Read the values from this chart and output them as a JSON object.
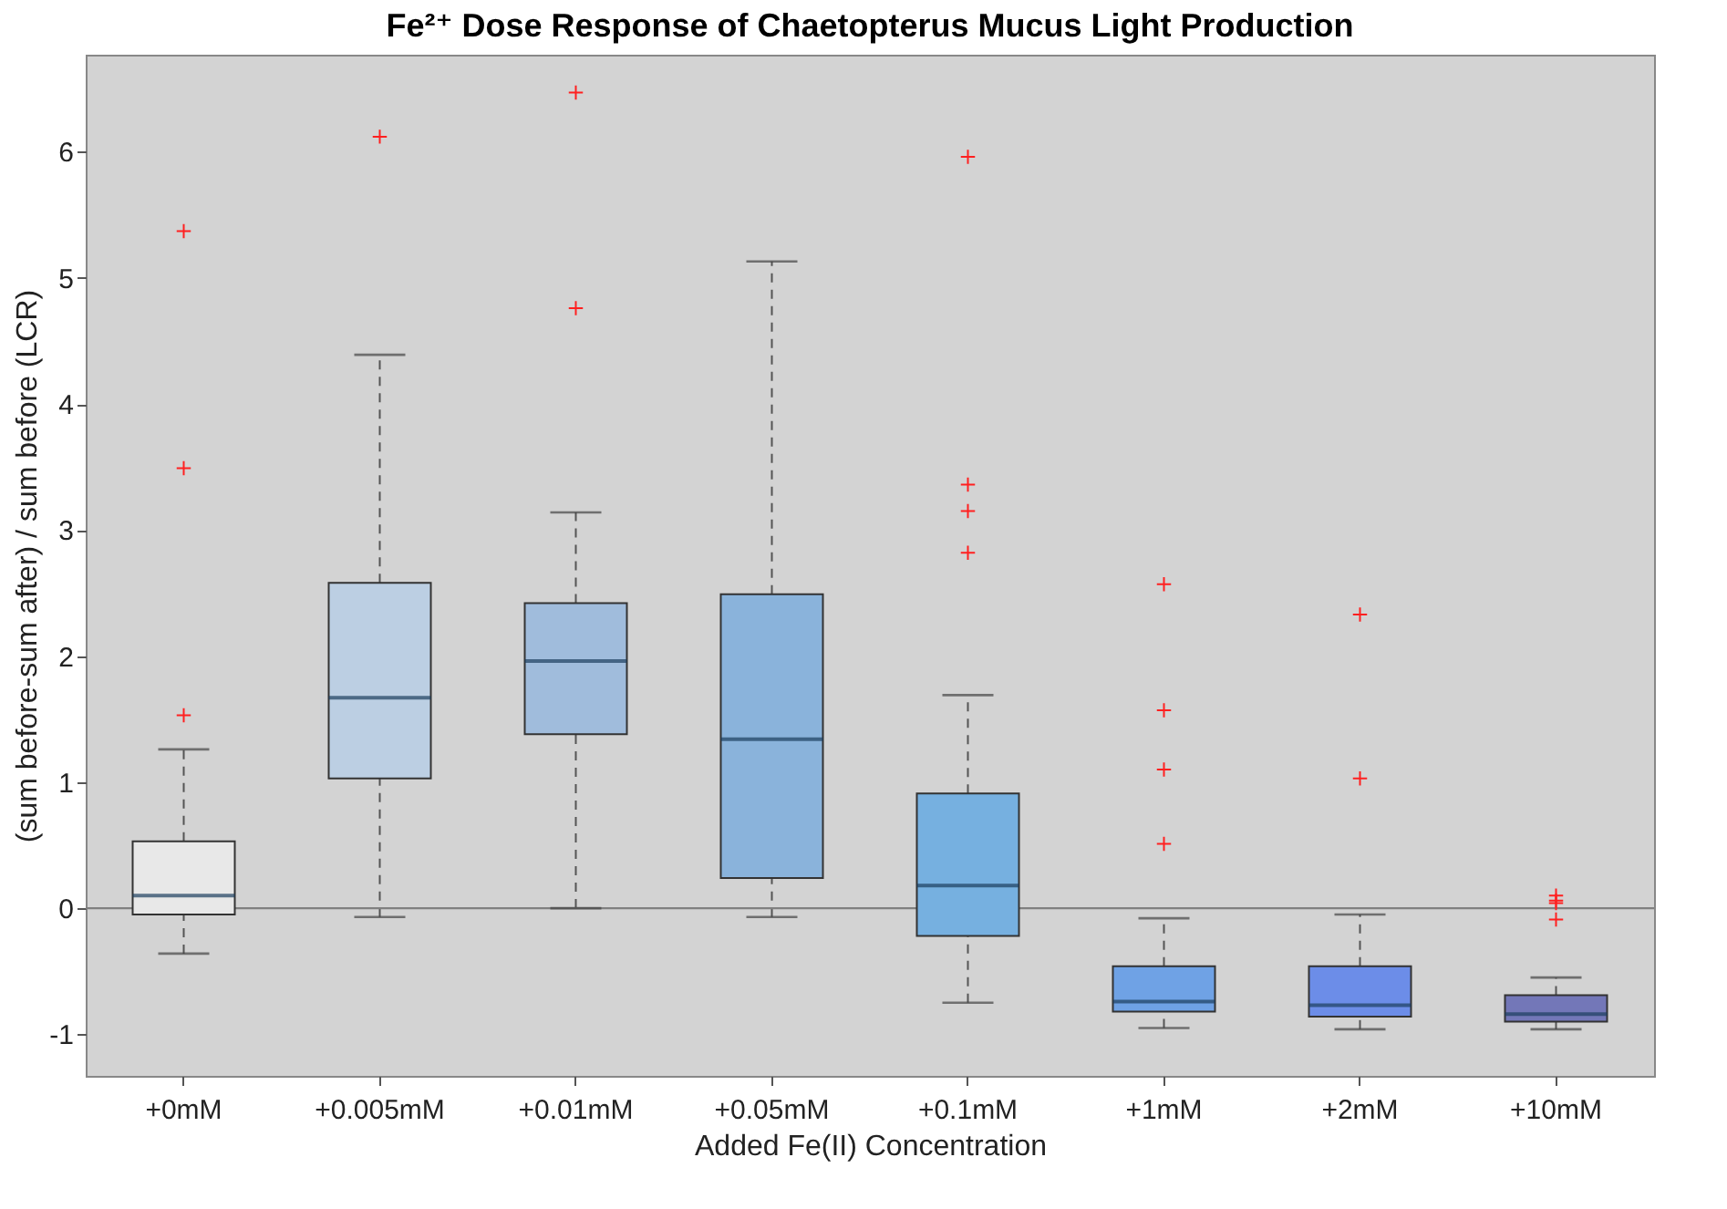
{
  "chart_data": {
    "type": "box",
    "title": "Fe²⁺ Dose Response of Chaetopterus Mucus Light Production",
    "xlabel": "Added Fe(II) Concentration",
    "ylabel": "(sum before-sum after) / sum before (LCR)",
    "categories": [
      "+0mM",
      "+0.005mM",
      "+0.01mM",
      "+0.05mM",
      "+0.1mM",
      "+1mM",
      "+2mM",
      "+10mM"
    ],
    "colors": [
      "#e8e8e8",
      "#bccfe3",
      "#a0bcdc",
      "#8ab3db",
      "#76b0e0",
      "#6fa2e5",
      "#6c8de8",
      "#7377b8"
    ],
    "boxes": [
      {
        "low": -0.36,
        "q1": -0.05,
        "median": 0.1,
        "q3": 0.53,
        "high": 1.26,
        "outliers": [
          1.53,
          3.49,
          5.37
        ]
      },
      {
        "low": -0.07,
        "q1": 1.03,
        "median": 1.67,
        "q3": 2.58,
        "high": 4.39,
        "outliers": [
          6.12
        ]
      },
      {
        "low": 0.0,
        "q1": 1.38,
        "median": 1.96,
        "q3": 2.42,
        "high": 3.14,
        "outliers": [
          4.76,
          6.47
        ]
      },
      {
        "low": -0.07,
        "q1": 0.24,
        "median": 1.34,
        "q3": 2.49,
        "high": 5.13
      },
      {
        "low": -0.75,
        "q1": -0.22,
        "median": 0.18,
        "q3": 0.91,
        "high": 1.69,
        "outliers": [
          2.82,
          3.15,
          3.36,
          5.96
        ]
      },
      {
        "low": -0.95,
        "q1": -0.82,
        "median": -0.74,
        "q3": -0.46,
        "high": -0.08,
        "outliers": [
          0.51,
          1.1,
          1.57,
          2.57
        ]
      },
      {
        "low": -0.96,
        "q1": -0.86,
        "median": -0.77,
        "q3": -0.46,
        "high": -0.05,
        "outliers": [
          1.03,
          2.33
        ]
      },
      {
        "low": -0.96,
        "q1": -0.9,
        "median": -0.84,
        "q3": -0.69,
        "high": -0.55,
        "outliers": [
          -0.09,
          0.04,
          0.06,
          0.1
        ]
      }
    ],
    "ylim": [
      -1.33,
      6.77
    ],
    "yticks": [
      -1,
      0,
      1,
      2,
      3,
      4,
      5,
      6
    ],
    "ref_lines": [
      {
        "axis": "y",
        "value": 0,
        "color": "#808080"
      }
    ],
    "marker": "cross",
    "grid": false
  }
}
